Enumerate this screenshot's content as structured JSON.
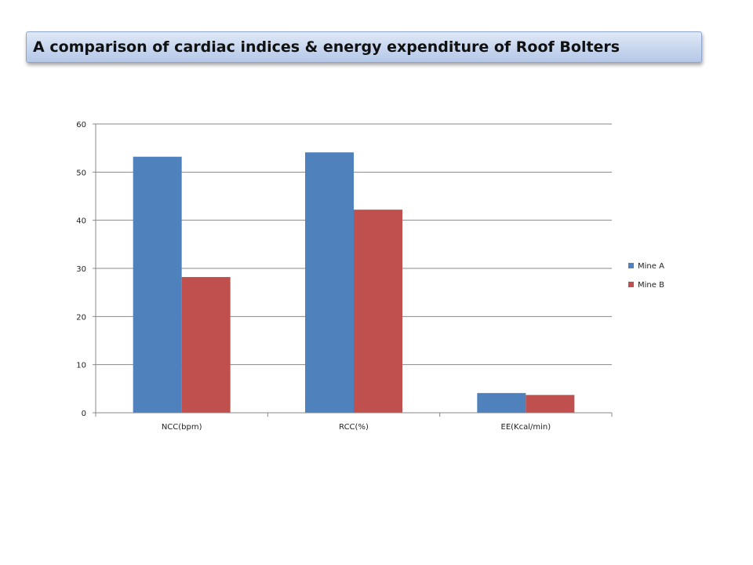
{
  "header": {
    "title": "A comparison of cardiac indices & energy expenditure of Roof Bolters"
  },
  "chart_data": {
    "type": "bar",
    "categories": [
      "NCC(bpm)",
      "RCC(%)",
      "EE(Kcal/min)"
    ],
    "series": [
      {
        "name": "Mine A",
        "values": [
          53.2,
          54.1,
          4.1
        ],
        "color": "#4f81bd"
      },
      {
        "name": "Mine B",
        "values": [
          28.2,
          42.2,
          3.7
        ],
        "color": "#c0504d"
      }
    ],
    "yticks": [
      "0",
      "10",
      "20",
      "30",
      "40",
      "50",
      "60"
    ],
    "ylim": [
      0,
      60
    ],
    "grid": true,
    "legend": "right"
  }
}
